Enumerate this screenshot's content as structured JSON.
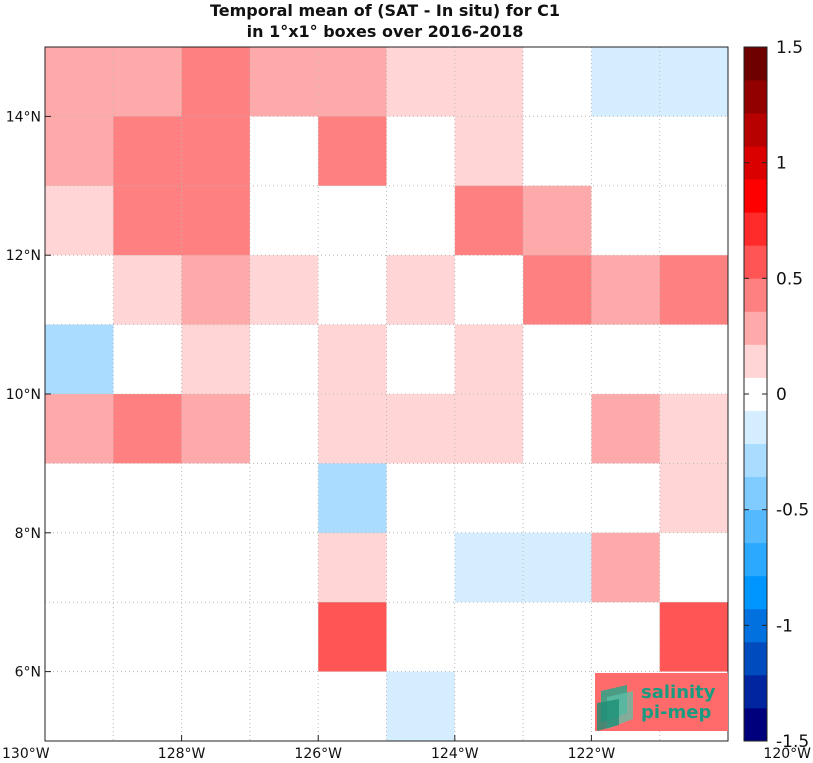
{
  "chart_data": {
    "type": "heatmap",
    "title": [
      "Temporal mean of (SAT - In situ) for C1",
      "in 1°x1° boxes over 2016-2018"
    ],
    "x_range": [
      -130,
      -120
    ],
    "y_range": [
      5,
      15
    ],
    "x_ticks": [
      {
        "value": -130,
        "label": "130°W"
      },
      {
        "value": -128,
        "label": "128°W"
      },
      {
        "value": -126,
        "label": "126°W"
      },
      {
        "value": -124,
        "label": "124°W"
      },
      {
        "value": -122,
        "label": "122°W"
      },
      {
        "value": -120,
        "label": "120°W"
      }
    ],
    "y_ticks": [
      {
        "value": 6,
        "label": "6°N"
      },
      {
        "value": 8,
        "label": "8°N"
      },
      {
        "value": 10,
        "label": "10°N"
      },
      {
        "value": 12,
        "label": "12°N"
      },
      {
        "value": 14,
        "label": "14°N"
      }
    ],
    "grid": true,
    "colorbar": {
      "range": [
        -1.5,
        1.5
      ],
      "levels": 21,
      "ticks": [
        {
          "value": 1.5,
          "label": "1.5"
        },
        {
          "value": 1,
          "label": "1"
        },
        {
          "value": 0.5,
          "label": "0.5"
        },
        {
          "value": 0,
          "label": "0"
        },
        {
          "value": -0.5,
          "label": "-0.5"
        },
        {
          "value": -1,
          "label": "-1"
        },
        {
          "value": -1.5,
          "label": "-1.5"
        }
      ]
    },
    "cells": [
      {
        "lon": -130,
        "lat": 14,
        "value": 0.3
      },
      {
        "lon": -129,
        "lat": 14,
        "value": 0.3
      },
      {
        "lon": -128,
        "lat": 14,
        "value": 0.4
      },
      {
        "lon": -127,
        "lat": 14,
        "value": 0.3
      },
      {
        "lon": -126,
        "lat": 14,
        "value": 0.3
      },
      {
        "lon": -125,
        "lat": 14,
        "value": 0.15
      },
      {
        "lon": -124,
        "lat": 14,
        "value": 0.15
      },
      {
        "lon": -123,
        "lat": 14,
        "value": 0.0
      },
      {
        "lon": -122,
        "lat": 14,
        "value": -0.15
      },
      {
        "lon": -121,
        "lat": 14,
        "value": -0.15
      },
      {
        "lon": -130,
        "lat": 13,
        "value": 0.3
      },
      {
        "lon": -129,
        "lat": 13,
        "value": 0.4
      },
      {
        "lon": -128,
        "lat": 13,
        "value": 0.4
      },
      {
        "lon": -127,
        "lat": 13,
        "value": 0.0
      },
      {
        "lon": -126,
        "lat": 13,
        "value": 0.4
      },
      {
        "lon": -125,
        "lat": 13,
        "value": 0.0
      },
      {
        "lon": -124,
        "lat": 13,
        "value": 0.15
      },
      {
        "lon": -123,
        "lat": 13,
        "value": 0.0
      },
      {
        "lon": -122,
        "lat": 13,
        "value": 0.0
      },
      {
        "lon": -121,
        "lat": 13,
        "value": 0.0
      },
      {
        "lon": -130,
        "lat": 12,
        "value": 0.15
      },
      {
        "lon": -129,
        "lat": 12,
        "value": 0.4
      },
      {
        "lon": -128,
        "lat": 12,
        "value": 0.4
      },
      {
        "lon": -127,
        "lat": 12,
        "value": 0.0
      },
      {
        "lon": -126,
        "lat": 12,
        "value": 0.0
      },
      {
        "lon": -125,
        "lat": 12,
        "value": 0.0
      },
      {
        "lon": -124,
        "lat": 12,
        "value": 0.4
      },
      {
        "lon": -123,
        "lat": 12,
        "value": 0.3
      },
      {
        "lon": -122,
        "lat": 12,
        "value": 0.0
      },
      {
        "lon": -121,
        "lat": 12,
        "value": 0.0
      },
      {
        "lon": -130,
        "lat": 11,
        "value": 0.0
      },
      {
        "lon": -129,
        "lat": 11,
        "value": 0.15
      },
      {
        "lon": -128,
        "lat": 11,
        "value": 0.3
      },
      {
        "lon": -127,
        "lat": 11,
        "value": 0.15
      },
      {
        "lon": -126,
        "lat": 11,
        "value": 0.0
      },
      {
        "lon": -125,
        "lat": 11,
        "value": 0.15
      },
      {
        "lon": -124,
        "lat": 11,
        "value": 0.0
      },
      {
        "lon": -123,
        "lat": 11,
        "value": 0.4
      },
      {
        "lon": -122,
        "lat": 11,
        "value": 0.3
      },
      {
        "lon": -121,
        "lat": 11,
        "value": 0.4
      },
      {
        "lon": -130,
        "lat": 10,
        "value": -0.25
      },
      {
        "lon": -129,
        "lat": 10,
        "value": 0.0
      },
      {
        "lon": -128,
        "lat": 10,
        "value": 0.15
      },
      {
        "lon": -127,
        "lat": 10,
        "value": 0.0
      },
      {
        "lon": -126,
        "lat": 10,
        "value": 0.15
      },
      {
        "lon": -125,
        "lat": 10,
        "value": 0.0
      },
      {
        "lon": -124,
        "lat": 10,
        "value": 0.15
      },
      {
        "lon": -123,
        "lat": 10,
        "value": 0.0
      },
      {
        "lon": -122,
        "lat": 10,
        "value": 0.0
      },
      {
        "lon": -121,
        "lat": 10,
        "value": 0.0
      },
      {
        "lon": -130,
        "lat": 9,
        "value": 0.3
      },
      {
        "lon": -129,
        "lat": 9,
        "value": 0.45
      },
      {
        "lon": -128,
        "lat": 9,
        "value": 0.3
      },
      {
        "lon": -127,
        "lat": 9,
        "value": 0.0
      },
      {
        "lon": -126,
        "lat": 9,
        "value": 0.15
      },
      {
        "lon": -125,
        "lat": 9,
        "value": 0.15
      },
      {
        "lon": -124,
        "lat": 9,
        "value": 0.15
      },
      {
        "lon": -123,
        "lat": 9,
        "value": 0.0
      },
      {
        "lon": -122,
        "lat": 9,
        "value": 0.3
      },
      {
        "lon": -121,
        "lat": 9,
        "value": 0.15
      },
      {
        "lon": -130,
        "lat": 8,
        "value": 0.0
      },
      {
        "lon": -129,
        "lat": 8,
        "value": 0.0
      },
      {
        "lon": -128,
        "lat": 8,
        "value": 0.0
      },
      {
        "lon": -127,
        "lat": 8,
        "value": 0.0
      },
      {
        "lon": -126,
        "lat": 8,
        "value": -0.25
      },
      {
        "lon": -125,
        "lat": 8,
        "value": 0.0
      },
      {
        "lon": -124,
        "lat": 8,
        "value": 0.0
      },
      {
        "lon": -123,
        "lat": 8,
        "value": 0.0
      },
      {
        "lon": -122,
        "lat": 8,
        "value": 0.0
      },
      {
        "lon": -121,
        "lat": 8,
        "value": 0.15
      },
      {
        "lon": -130,
        "lat": 7,
        "value": 0.0
      },
      {
        "lon": -129,
        "lat": 7,
        "value": 0.0
      },
      {
        "lon": -128,
        "lat": 7,
        "value": 0.0
      },
      {
        "lon": -127,
        "lat": 7,
        "value": 0.0
      },
      {
        "lon": -126,
        "lat": 7,
        "value": 0.15
      },
      {
        "lon": -125,
        "lat": 7,
        "value": 0.0
      },
      {
        "lon": -124,
        "lat": 7,
        "value": -0.15
      },
      {
        "lon": -123,
        "lat": 7,
        "value": -0.15
      },
      {
        "lon": -122,
        "lat": 7,
        "value": 0.3
      },
      {
        "lon": -121,
        "lat": 7,
        "value": 0.0
      },
      {
        "lon": -130,
        "lat": 6,
        "value": 0.0
      },
      {
        "lon": -129,
        "lat": 6,
        "value": 0.0
      },
      {
        "lon": -128,
        "lat": 6,
        "value": 0.0
      },
      {
        "lon": -127,
        "lat": 6,
        "value": 0.0
      },
      {
        "lon": -126,
        "lat": 6,
        "value": 0.55
      },
      {
        "lon": -125,
        "lat": 6,
        "value": 0.0
      },
      {
        "lon": -124,
        "lat": 6,
        "value": 0.0
      },
      {
        "lon": -123,
        "lat": 6,
        "value": 0.0
      },
      {
        "lon": -122,
        "lat": 6,
        "value": 0.0
      },
      {
        "lon": -121,
        "lat": 6,
        "value": 0.55
      },
      {
        "lon": -130,
        "lat": 5,
        "value": 0.0
      },
      {
        "lon": -129,
        "lat": 5,
        "value": 0.0
      },
      {
        "lon": -128,
        "lat": 5,
        "value": 0.0
      },
      {
        "lon": -127,
        "lat": 5,
        "value": 0.0
      },
      {
        "lon": -126,
        "lat": 5,
        "value": 0.0
      },
      {
        "lon": -125,
        "lat": 5,
        "value": -0.15
      },
      {
        "lon": -124,
        "lat": 5,
        "value": 0.0
      },
      {
        "lon": -123,
        "lat": 5,
        "value": 0.0
      },
      {
        "lon": -122,
        "lat": 5,
        "value": 0.0
      },
      {
        "lon": -121,
        "lat": 5,
        "value": 0.0
      }
    ]
  },
  "logo": {
    "line1": "salinity",
    "line2": "pi-mep",
    "text_color": "#1a9b80",
    "background_color": "#ff6b6b"
  }
}
